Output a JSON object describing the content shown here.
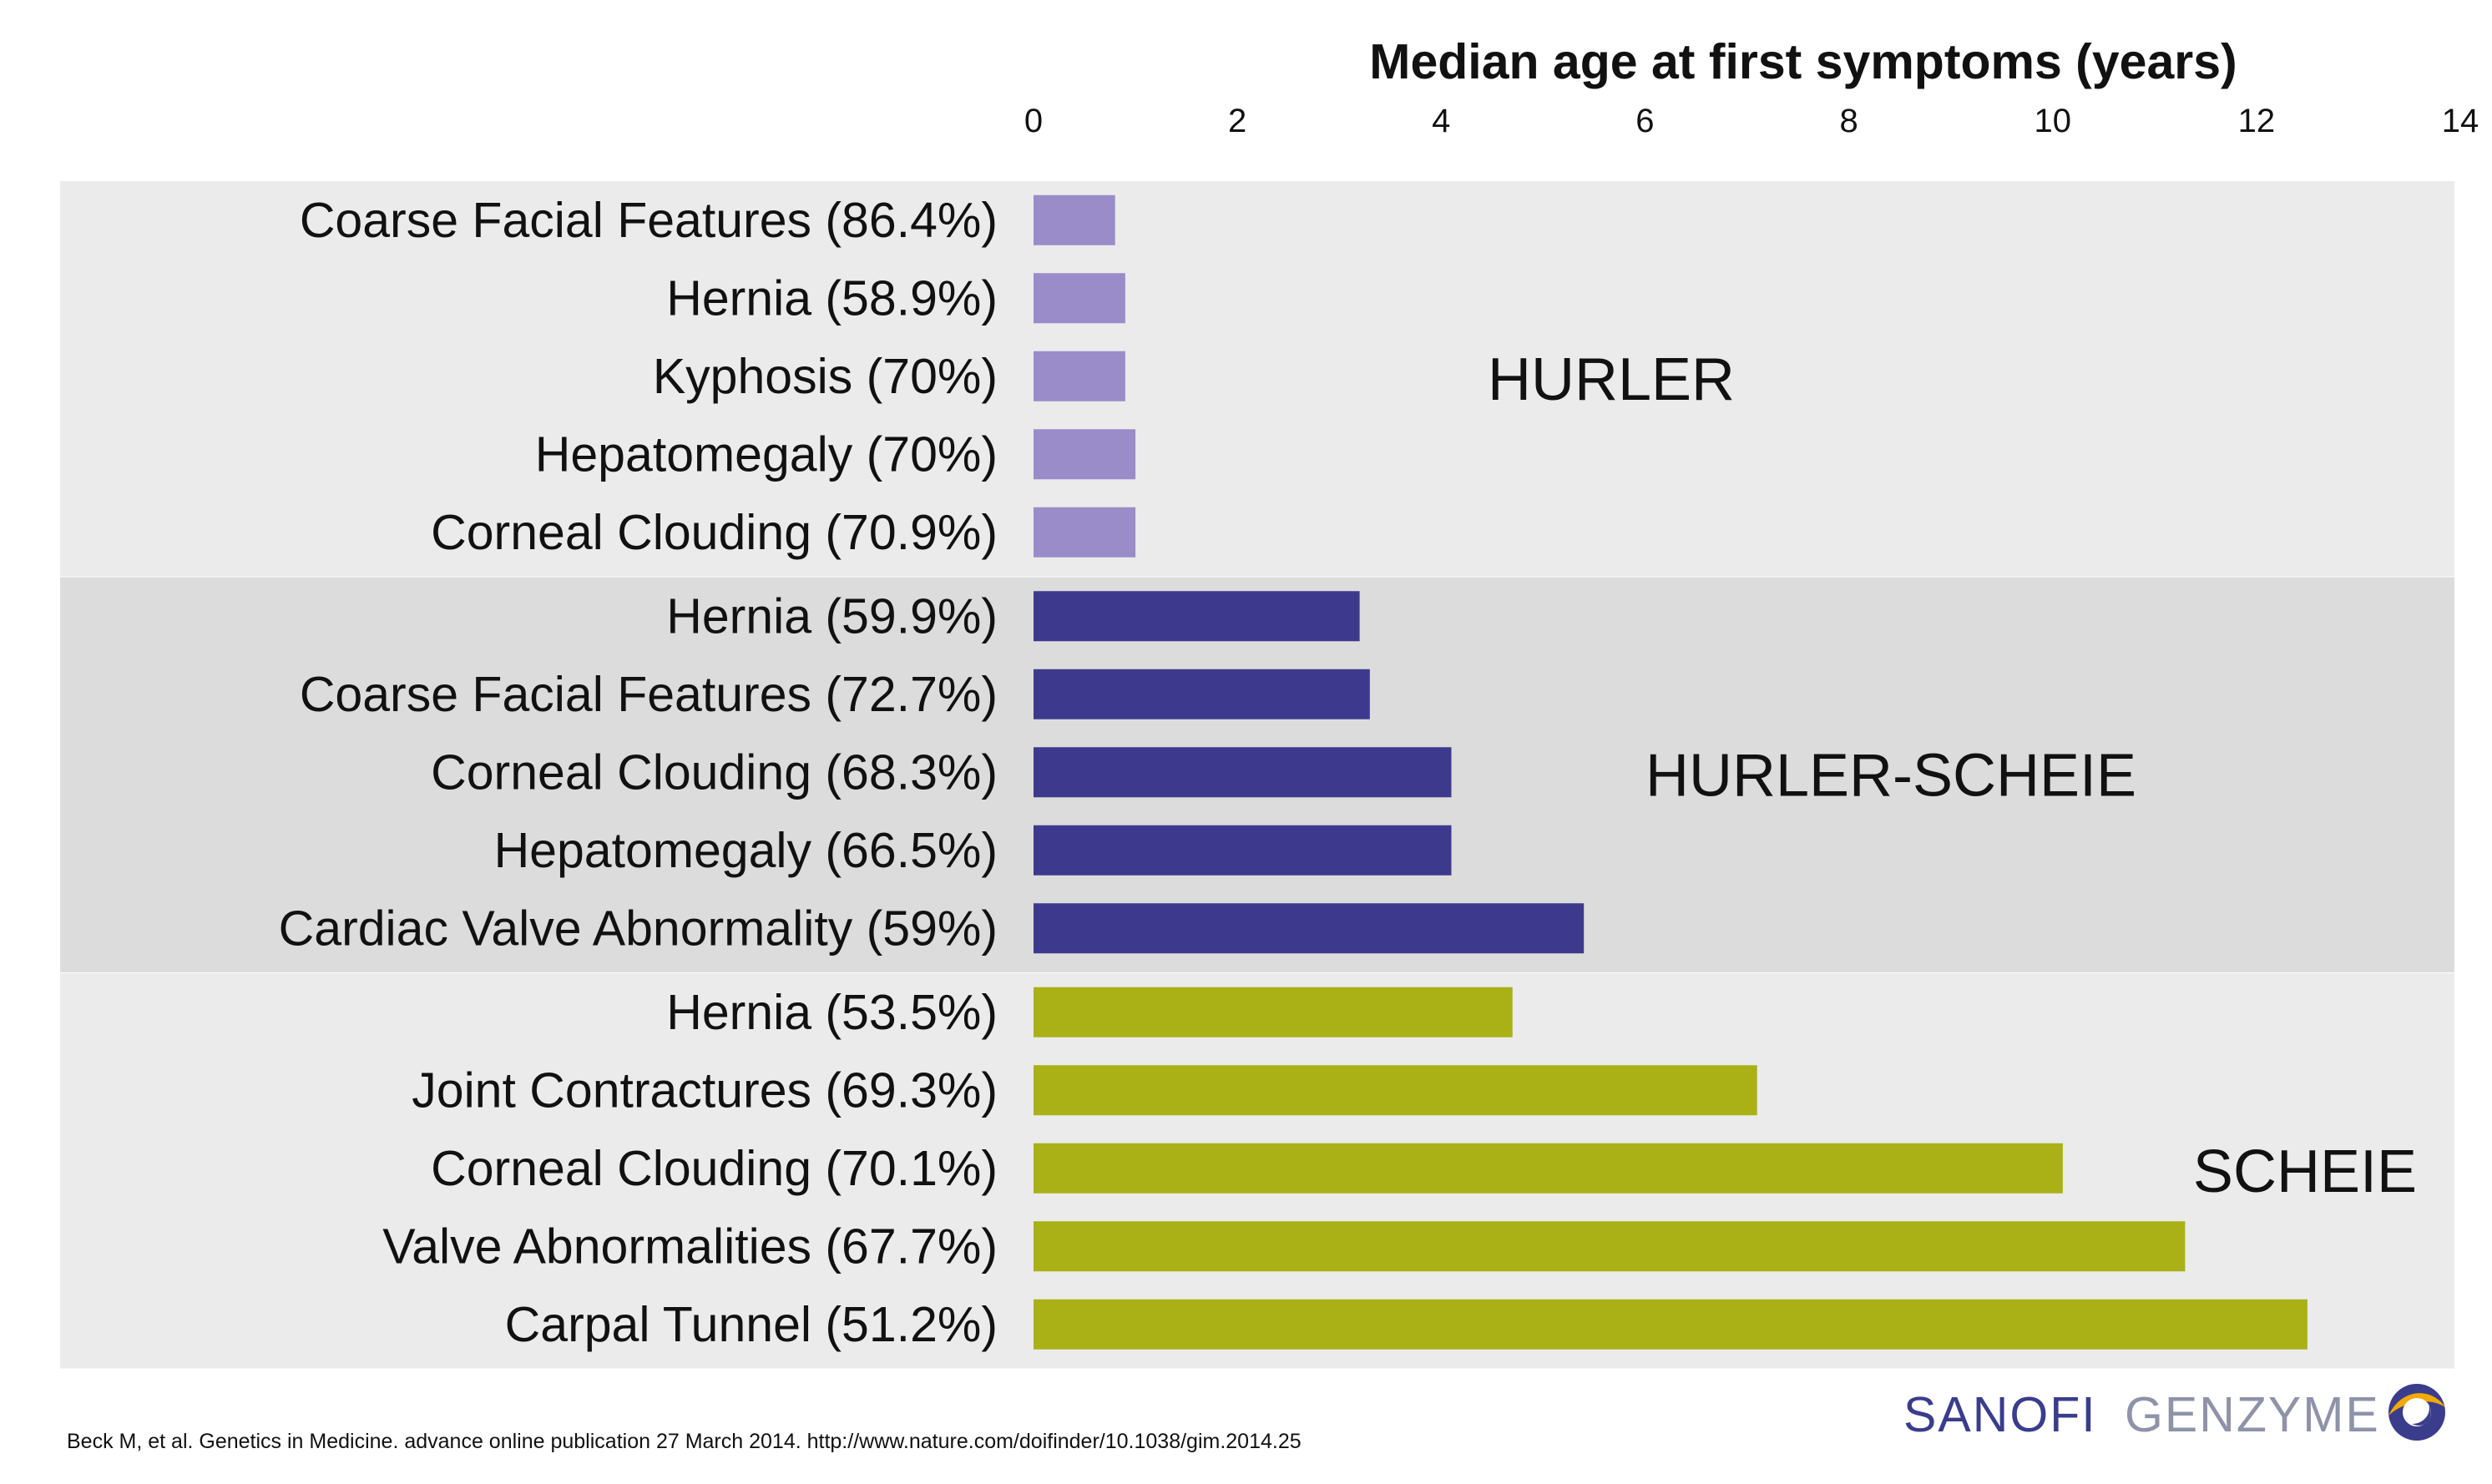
{
  "chart_data": {
    "type": "bar",
    "orientation": "horizontal",
    "xlabel": "Median age at first symptoms (years)",
    "xlim": [
      0,
      14
    ],
    "xticks": [
      0,
      2,
      4,
      6,
      8,
      10,
      12,
      14
    ],
    "grid": false,
    "groups": [
      {
        "name": "HURLER",
        "color": "#9a8cc8",
        "band_color": "#ebebeb",
        "categories": [
          "Coarse Facial Features (86.4%)",
          "Hernia (58.9%)",
          "Kyphosis (70%)",
          "Hepatomegaly (70%)",
          "Corneal Clouding (70.9%)"
        ],
        "values": [
          0.8,
          0.9,
          0.9,
          1.0,
          1.0
        ]
      },
      {
        "name": "HURLER-SCHEIE",
        "color": "#3d3a8e",
        "band_color": "#dcdcdc",
        "categories": [
          "Hernia (59.9%)",
          "Coarse Facial Features (72.7%)",
          "Corneal Clouding (68.3%)",
          "Hepatomegaly (66.5%)",
          "Cardiac Valve Abnormality (59%)"
        ],
        "values": [
          3.2,
          3.3,
          4.1,
          4.1,
          5.4
        ]
      },
      {
        "name": "SCHEIE",
        "color": "#a9b116",
        "band_color": "#ebebeb",
        "categories": [
          "Hernia (53.5%)",
          "Joint Contractures (69.3%)",
          "Corneal Clouding (70.1%)",
          "Valve Abnormalities (67.7%)",
          "Carpal Tunnel (51.2%)"
        ],
        "values": [
          4.7,
          7.1,
          10.1,
          11.3,
          12.5
        ]
      }
    ]
  },
  "footer": {
    "citation": "Beck M, et al.  Genetics in Medicine. advance online publication 27 March 2014. http://www.nature.com/doifinder/10.1038/gim.2014.25",
    "logo_primary": "SANOFI",
    "logo_secondary": "GENZYME"
  }
}
